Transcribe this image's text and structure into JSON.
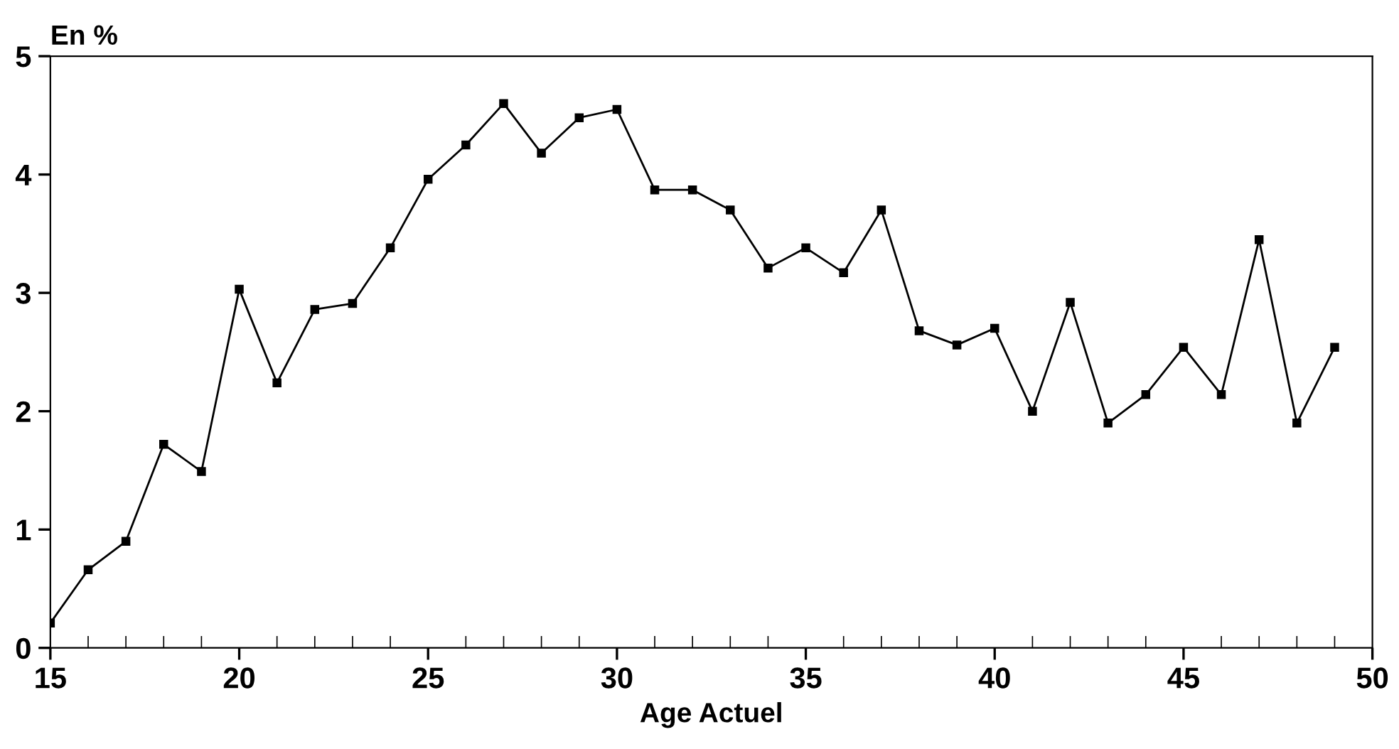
{
  "chart_data": {
    "type": "line",
    "xlabel": "Age Actuel",
    "ylabel": "En %",
    "x": [
      15,
      16,
      17,
      18,
      19,
      20,
      21,
      22,
      23,
      24,
      25,
      26,
      27,
      28,
      29,
      30,
      31,
      32,
      33,
      34,
      35,
      36,
      37,
      38,
      39,
      40,
      41,
      42,
      43,
      44,
      45,
      46,
      47,
      48,
      49
    ],
    "series": [
      {
        "color": "#000000",
        "values": [
          0.21,
          0.66,
          0.9,
          1.72,
          1.49,
          3.03,
          2.24,
          2.86,
          2.91,
          3.38,
          3.96,
          4.25,
          4.6,
          4.18,
          4.48,
          4.55,
          3.87,
          3.87,
          3.7,
          3.21,
          3.38,
          3.17,
          3.7,
          2.68,
          2.56,
          2.7,
          2.0,
          2.92,
          1.9,
          2.14,
          2.54,
          2.14,
          3.45,
          1.9,
          2.54
        ]
      }
    ],
    "xlim": [
      15,
      50
    ],
    "xticks": [
      15,
      20,
      25,
      30,
      35,
      40,
      45,
      50
    ],
    "ylim": [
      0,
      5
    ],
    "yticks": [
      0,
      1,
      2,
      3,
      4,
      5
    ],
    "marker": "square",
    "line_style": "solid",
    "grid": false,
    "legend": false
  }
}
